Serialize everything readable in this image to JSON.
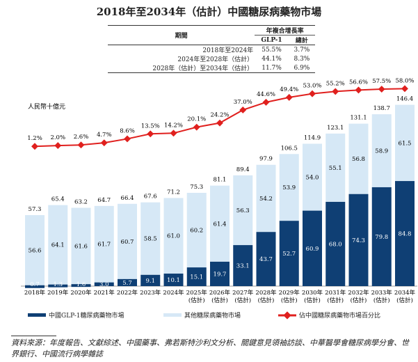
{
  "table": {
    "header_period": "期間",
    "header_cagr": "年複合增長率",
    "col_glp1": "GLP-1",
    "col_total": "總計",
    "rows": [
      [
        "2018年至2024年",
        "55.5%",
        "3.7%"
      ],
      [
        "2024年至2028年（估計）",
        "44.1%",
        "8.3%"
      ],
      [
        "2028年（估計）至2034年（估計）",
        "11.7%",
        "6.9%"
      ]
    ]
  },
  "chart_data": {
    "type": "bar",
    "title": "2018年至2034年（估計）中國糖尿病藥物市場",
    "ylabel": "人民幣十億元",
    "categories": [
      "2018年",
      "2019年",
      "2020年",
      "2021年",
      "2022年",
      "2023年",
      "2024年",
      "2025年\n(估計)",
      "2026年\n(估計)",
      "2027年\n(估計)",
      "2028年\n(估計)",
      "2029年\n(估計)",
      "2030年\n(估計)",
      "2031年\n(估計)",
      "2032年\n(估計)",
      "2033年\n(估計)",
      "2034年\n(估計)"
    ],
    "totals": [
      57.3,
      65.4,
      63.2,
      64.7,
      66.4,
      67.6,
      71.2,
      75.3,
      81.1,
      89.4,
      97.9,
      106.5,
      114.9,
      123.1,
      131.1,
      138.7,
      146.4
    ],
    "series": [
      {
        "name": "中國GLP-1糖尿病藥物市場",
        "color": "#0f3f74",
        "values": [
          0.7,
          1.3,
          1.6,
          3.0,
          5.7,
          9.1,
          10.1,
          15.1,
          19.7,
          33.1,
          43.7,
          52.7,
          60.9,
          68.0,
          74.3,
          79.8,
          84.8
        ]
      },
      {
        "name": "其他糖尿病藥物市場",
        "color": "#d6e8f6",
        "values": [
          56.6,
          64.1,
          61.6,
          61.7,
          60.7,
          58.5,
          61.0,
          60.2,
          61.4,
          56.3,
          54.2,
          53.9,
          54.0,
          55.1,
          56.8,
          58.9,
          61.5
        ]
      },
      {
        "name": "佔中國糖尿病藥物市場百分比",
        "type": "line",
        "color": "#e0201e",
        "values": [
          1.2,
          2.0,
          2.6,
          4.7,
          8.6,
          13.5,
          14.2,
          20.1,
          24.2,
          37.0,
          44.6,
          49.4,
          53.0,
          55.2,
          56.6,
          57.5,
          58.0
        ],
        "labels": [
          "1.2%",
          "2.0%",
          "2.6%",
          "4.7%",
          "8.6%",
          "13.5%",
          "14.2%",
          "20.1%",
          "24.2%",
          "37.0%",
          "44.6%",
          "49.4%",
          "53.0%",
          "55.2%",
          "56.6%",
          "57.5%",
          "58.0%"
        ]
      }
    ]
  },
  "source": "資料來源：年度報告、文獻綜述、中國藥事、弗若斯特沙利文分析、關鍵意見領袖訪談、中華醫學會糖尿病學分會、世界銀行、中國流行病學雜誌"
}
